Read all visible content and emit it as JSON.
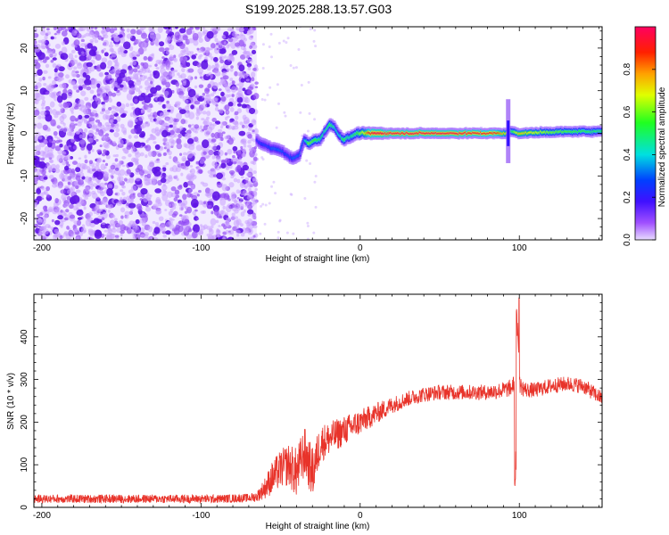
{
  "title": "S199.2025.288.13.57.G03",
  "chart_data": [
    {
      "type": "heatmap",
      "title": "S199.2025.288.13.57.G03",
      "xlabel": "Height of straight line (km)",
      "ylabel": "Frequency (Hz)",
      "xlim": [
        -205,
        152
      ],
      "ylim": [
        -25,
        25
      ],
      "xticks": [
        -200,
        -100,
        0,
        100
      ],
      "yticks": [
        -20,
        -10,
        0,
        10,
        20
      ],
      "colorbar": {
        "label": "Normalized spectral amplitude",
        "range": [
          0.0,
          1.0
        ],
        "ticks": [
          0.0,
          0.2,
          0.4,
          0.6,
          0.8
        ],
        "tick_labels": [
          "0.0",
          "0.2",
          "0.4",
          "0.6",
          "0.8"
        ]
      },
      "noise_region_x": [
        -205,
        -65
      ],
      "ridge": {
        "x": [
          -65,
          -62,
          -58,
          -55,
          -50,
          -46,
          -42,
          -38,
          -35,
          -32,
          -28,
          -25,
          -22,
          -19,
          -16,
          -13,
          -10,
          -7,
          -4,
          -2,
          0,
          3,
          6,
          10,
          15,
          30,
          60,
          85,
          92,
          95,
          100,
          120,
          152
        ],
        "freq": [
          -1.5,
          -2.5,
          -3,
          -3.5,
          -4,
          -5,
          -6,
          -5,
          -1.5,
          -2.5,
          -1.5,
          -1.5,
          0.5,
          2,
          1.5,
          -0.5,
          -1.5,
          -1,
          -0.5,
          0,
          0,
          0,
          0,
          0,
          0,
          0,
          0,
          0,
          0,
          0.5,
          0,
          0.3,
          0.5
        ],
        "amplitude": [
          0.2,
          0.25,
          0.25,
          0.3,
          0.3,
          0.25,
          0.3,
          0.3,
          0.35,
          0.6,
          0.55,
          0.5,
          0.45,
          0.55,
          0.45,
          0.4,
          0.55,
          0.45,
          0.5,
          0.55,
          0.6,
          0.7,
          0.9,
          0.95,
          0.95,
          0.95,
          0.95,
          0.9,
          0.7,
          0.5,
          0.75,
          0.6,
          0.5
        ]
      },
      "spike_at_x": 93
    },
    {
      "type": "line",
      "xlabel": "Height of straight line (km)",
      "ylabel": "SNR (10 * v/v)",
      "xlim": [
        -205,
        152
      ],
      "ylim": [
        0,
        500
      ],
      "xticks": [
        -200,
        -100,
        0,
        100
      ],
      "yticks": [
        0,
        100,
        200,
        300,
        400
      ],
      "series": [
        {
          "name": "SNR",
          "color": "#e8332a",
          "x": [
            -205,
            -180,
            -150,
            -120,
            -90,
            -70,
            -65,
            -60,
            -55,
            -50,
            -45,
            -40,
            -35,
            -30,
            -25,
            -20,
            -10,
            0,
            10,
            20,
            30,
            40,
            50,
            60,
            70,
            80,
            90,
            95,
            98,
            100,
            102,
            105,
            110,
            120,
            130,
            140,
            152
          ],
          "y": [
            20,
            20,
            20,
            20,
            20,
            22,
            25,
            45,
            70,
            90,
            100,
            80,
            130,
            80,
            150,
            160,
            180,
            200,
            220,
            240,
            255,
            265,
            270,
            270,
            270,
            270,
            275,
            280,
            300,
            290,
            280,
            275,
            275,
            285,
            290,
            285,
            255
          ],
          "noise": [
            10,
            10,
            10,
            10,
            10,
            10,
            12,
            25,
            40,
            45,
            50,
            60,
            60,
            60,
            45,
            40,
            35,
            30,
            25,
            20,
            18,
            18,
            18,
            18,
            18,
            18,
            20,
            20,
            20,
            20,
            20,
            18,
            18,
            18,
            18,
            18,
            18
          ]
        }
      ],
      "spike": {
        "x": 98.5,
        "max": 500,
        "min": 40
      }
    }
  ]
}
